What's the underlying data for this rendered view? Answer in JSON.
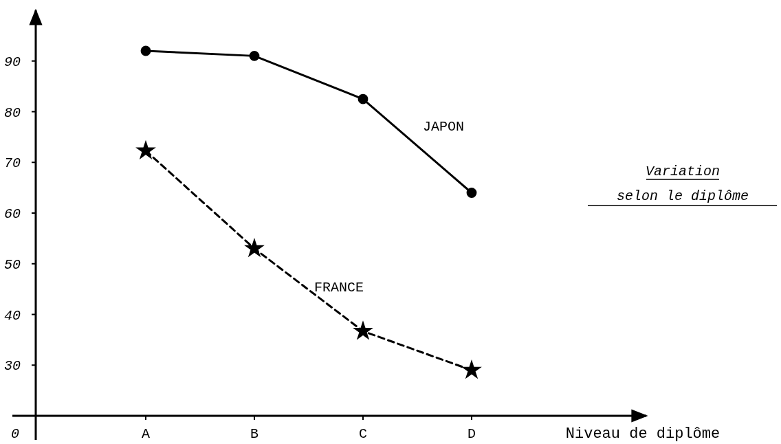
{
  "chart_data": {
    "type": "line",
    "title": "Variation selon le diplôme",
    "xlabel": "Niveau de diplôme",
    "categories": [
      "A",
      "B",
      "C",
      "D"
    ],
    "ylim": [
      20,
      100
    ],
    "yticks": [
      30,
      40,
      50,
      60,
      70,
      80,
      90
    ],
    "grid": false,
    "annotations": [
      "0"
    ],
    "series": [
      {
        "name": "JAPON",
        "color": "#000000",
        "values": [
          92,
          91,
          82.5,
          64
        ],
        "marker": "circle",
        "line_style": "solid"
      },
      {
        "name": "FRANCE",
        "color": "#000000",
        "values": [
          72.3,
          53,
          36.7,
          29
        ],
        "marker": "star",
        "line_style": "dashed"
      }
    ]
  }
}
